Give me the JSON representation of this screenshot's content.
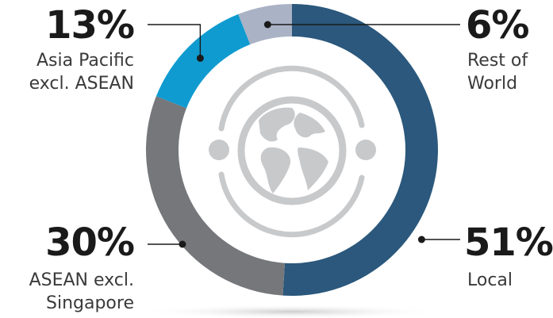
{
  "chart_data": {
    "type": "pie",
    "style": "donut",
    "slices": [
      {
        "name": "Local",
        "value": 51,
        "value_label": "51%",
        "label_lines": [
          "Local"
        ],
        "color": "#2b587c"
      },
      {
        "name": "ASEAN excl. Singapore",
        "value": 30,
        "value_label": "30%",
        "label_lines": [
          "ASEAN excl.",
          "Singapore"
        ],
        "color": "#75777b"
      },
      {
        "name": "Asia Pacific excl. ASEAN",
        "value": 13,
        "value_label": "13%",
        "label_lines": [
          "Asia Pacific",
          "excl. ASEAN"
        ],
        "color": "#0f9bd0"
      },
      {
        "name": "Rest of World",
        "value": 6,
        "value_label": "6%",
        "label_lines": [
          "Rest of",
          "World"
        ],
        "color": "#aab2c5"
      }
    ],
    "center_icon": "globe-icon",
    "center_icon_color": "#c8c9cb",
    "leader_color": "#1a1a1a"
  }
}
